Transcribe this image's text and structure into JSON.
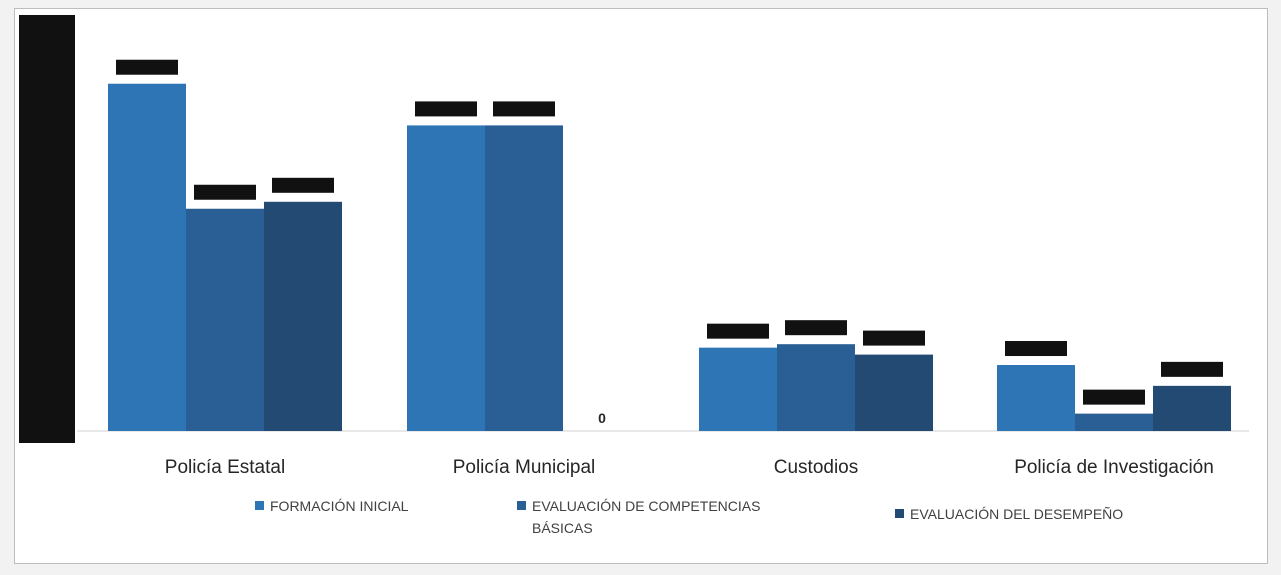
{
  "chart_data": {
    "type": "bar",
    "title": "",
    "xlabel": "",
    "ylabel": "",
    "categories": [
      "Policía Estatal",
      "Policía Municipal",
      "Custodios",
      "Policía de Investigación"
    ],
    "series": [
      {
        "name": "FORMACIÓN INICIAL",
        "color": "#2e75b6",
        "values": [
          100,
          88,
          24,
          19
        ]
      },
      {
        "name": "EVALUACIÓN DE COMPETENCIAS BÁSICAS",
        "color": "#2a5f95",
        "values": [
          64,
          88,
          25,
          5
        ]
      },
      {
        "name": "EVALUACIÓN DEL DESEMPEÑO",
        "color": "#234a72",
        "values": [
          66,
          0,
          22,
          13
        ]
      }
    ],
    "data_labels": [
      [
        "",
        "",
        "",
        ""
      ],
      [
        "",
        "",
        "",
        ""
      ],
      [
        "",
        "0",
        "",
        ""
      ]
    ],
    "ylim": [
      0,
      110
    ],
    "grid": false,
    "legend_position": "bottom"
  }
}
